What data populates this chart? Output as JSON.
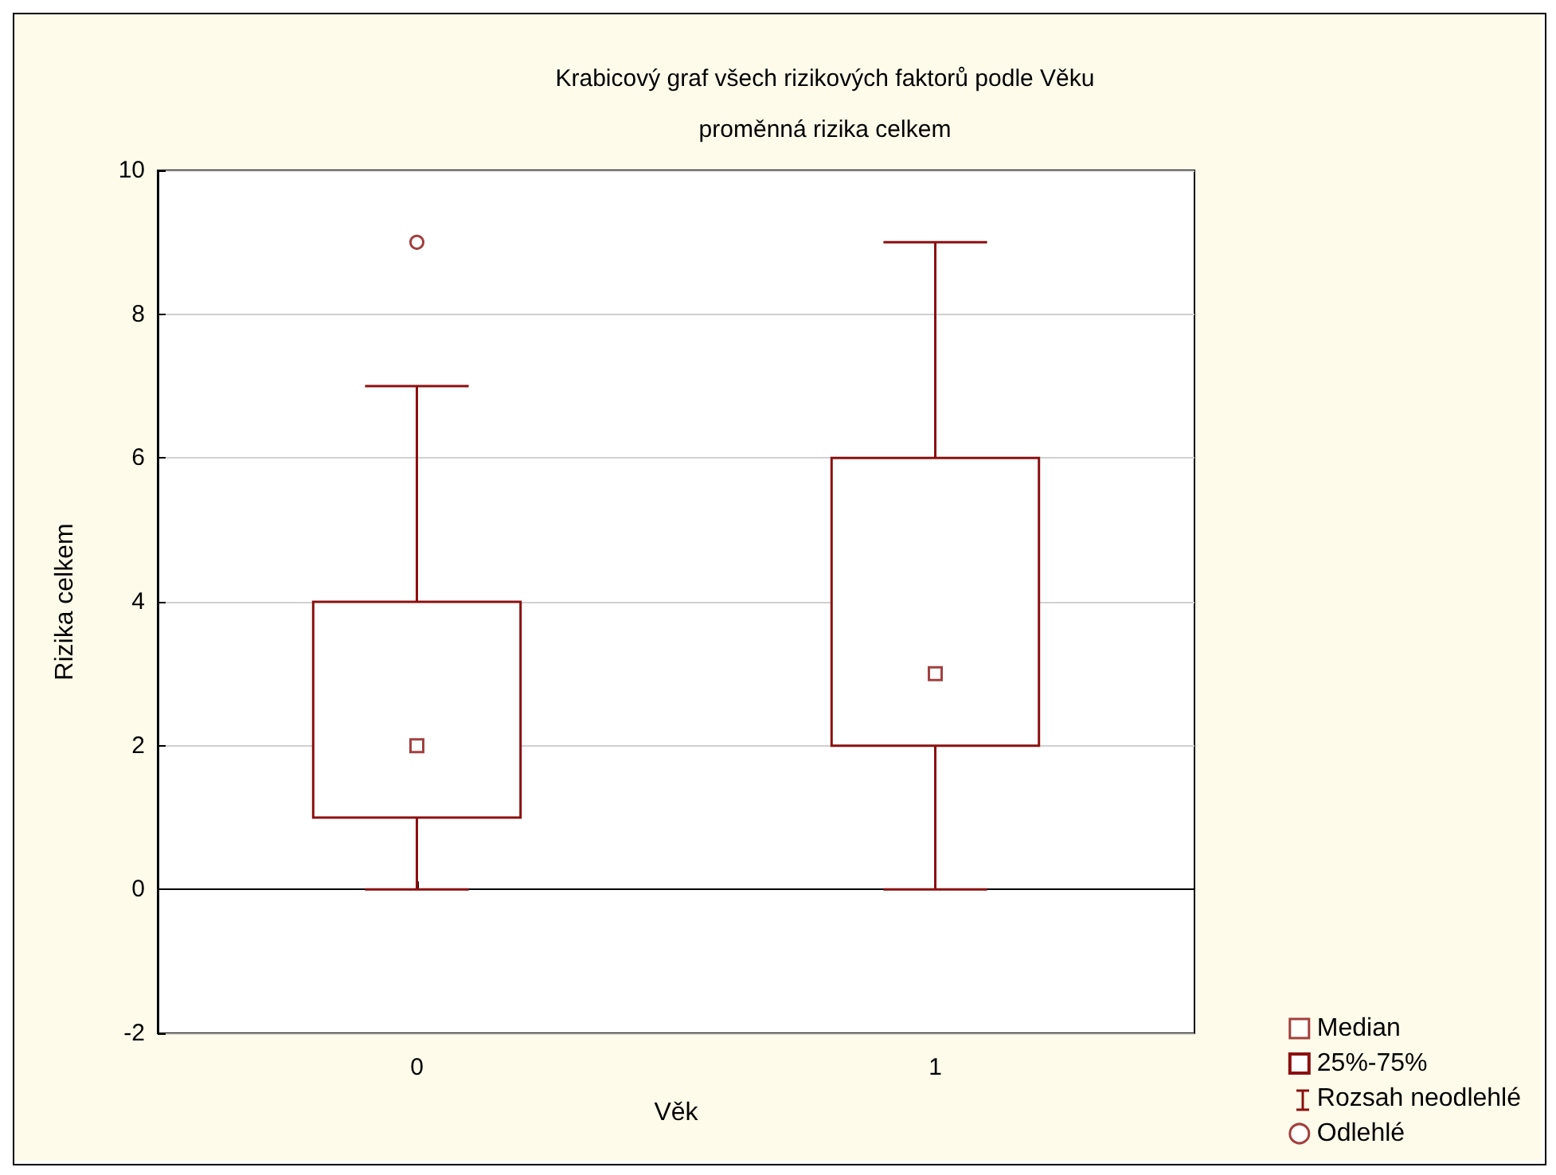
{
  "chart_data": {
    "type": "box",
    "title": "Krabicový graf všech rizikových faktorů podle Věku",
    "subtitle": "proměnná rizika celkem",
    "xlabel": "Věk",
    "ylabel": "Rizika celkem",
    "categories": [
      "0",
      "1"
    ],
    "ylim": [
      -2,
      10
    ],
    "yticks": [
      -2,
      0,
      2,
      4,
      6,
      8,
      10
    ],
    "grid": "y",
    "legend": "bottom right",
    "annotations": [
      "Rozsah neodlehlé"
    ],
    "series": [
      {
        "type": "scatter",
        "name": "Median",
        "color": "#8b1010",
        "marker": "square",
        "x": [
          "0",
          "1"
        ],
        "values": [
          2,
          3
        ]
      },
      {
        "name": "25%-75%",
        "color": "#8b1010",
        "boxes": [
          {
            "low": 0,
            "q1": 1,
            "q3": 4,
            "high": 7
          },
          {
            "low": 0,
            "q1": 2,
            "q3": 6,
            "high": 9
          }
        ]
      },
      {
        "type": "scatter",
        "name": "Odlehlé",
        "color": "#8b1010",
        "marker": "circle",
        "x": [
          "0"
        ],
        "values": [
          9
        ]
      }
    ]
  }
}
